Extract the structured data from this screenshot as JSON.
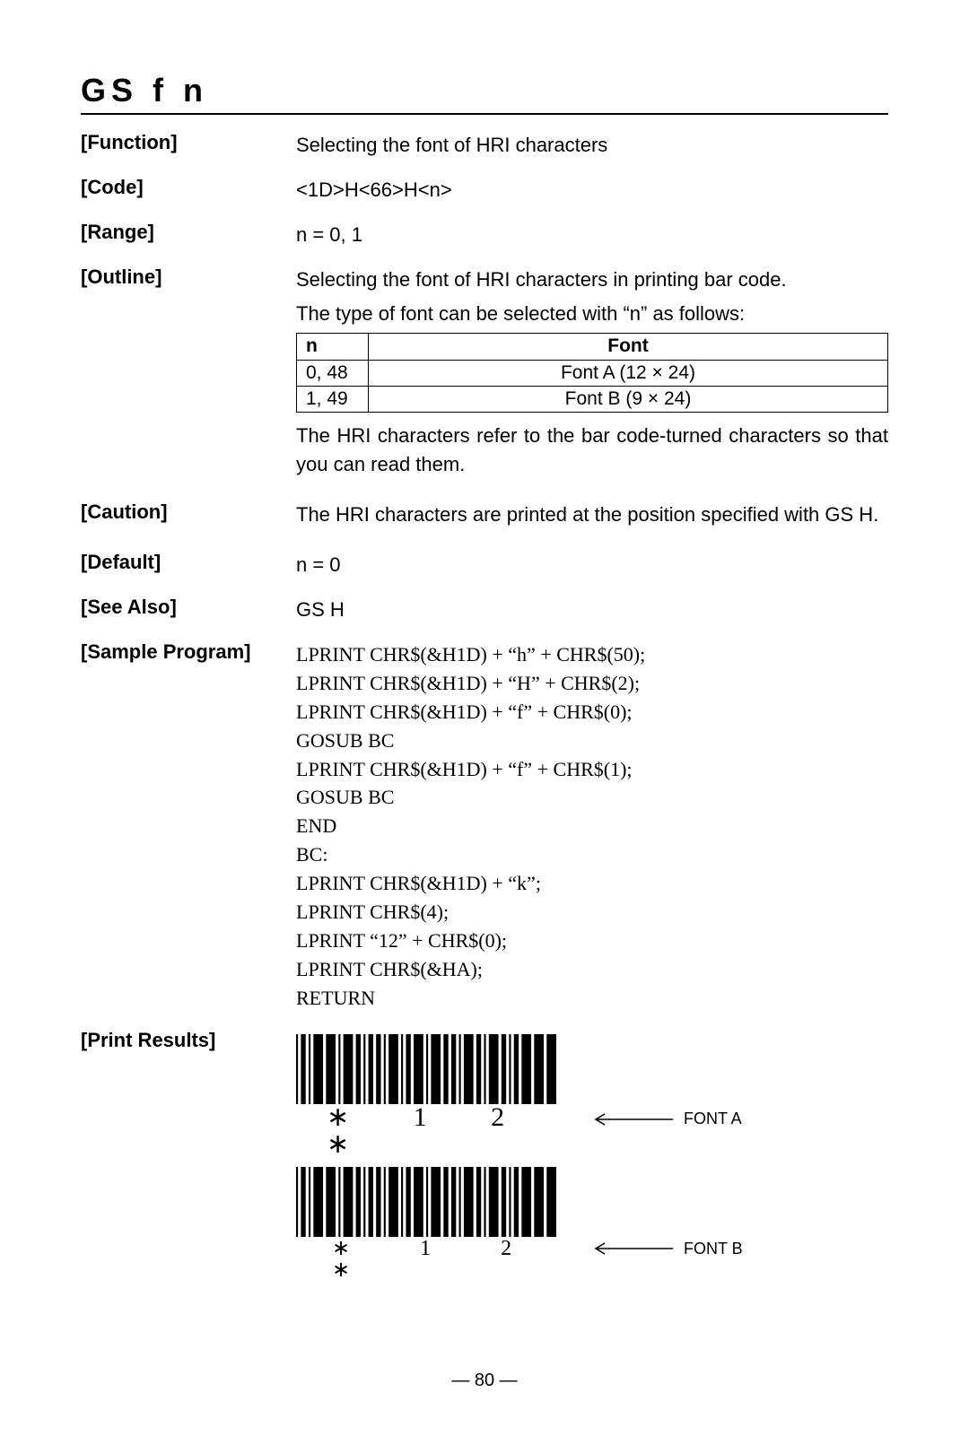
{
  "title": "GS  f   n",
  "function": {
    "label": "[Function]",
    "text": "Selecting the font of HRI characters"
  },
  "code": {
    "label": "[Code]",
    "text": "<1D>H<66>H<n>"
  },
  "range": {
    "label": "[Range]",
    "text": "n = 0, 1"
  },
  "outline": {
    "label": "[Outline]",
    "line1": "Selecting the font of HRI characters in printing bar code.",
    "line2": "The type of font can be selected with “n” as follows:",
    "table": {
      "head_n": "n",
      "head_font": "Font",
      "rows": [
        {
          "n": "0, 48",
          "font": "Font A (12 × 24)"
        },
        {
          "n": "1, 49",
          "font": "Font B (9 × 24)"
        }
      ]
    },
    "note": "The HRI characters refer to the bar code-turned characters so that you can read them."
  },
  "caution": {
    "label": "[Caution]",
    "text": "The HRI characters are printed at the position specified with GS H."
  },
  "default_": {
    "label": "[Default]",
    "text": "n = 0"
  },
  "seealso": {
    "label": "[See Also]",
    "text": "GS H"
  },
  "sample": {
    "label": "[Sample Program]",
    "lines": [
      "LPRINT CHR$(&H1D) + “h” + CHR$(50);",
      "LPRINT CHR$(&H1D) + “H” + CHR$(2);",
      "LPRINT CHR$(&H1D) + “f” + CHR$(0);",
      "GOSUB BC",
      "LPRINT CHR$(&H1D) + “f” + CHR$(1);",
      "GOSUB BC",
      "END",
      "BC:",
      "LPRINT CHR$(&H1D) + “k”;",
      "LPRINT CHR$(4);",
      "LPRINT “12” + CHR$(0);",
      "LPRINT CHR$(&HA);",
      "RETURN"
    ]
  },
  "print": {
    "label": "[Print Results]",
    "chars": "∗  1  2  ∗",
    "lblA": "FONT A",
    "lblB": "FONT B",
    "barcode": {
      "widths": [
        2,
        5,
        2,
        10,
        10,
        2,
        10,
        5,
        2,
        5,
        5,
        2,
        10,
        2,
        5,
        10,
        2,
        10,
        5,
        5,
        2,
        10,
        5,
        2,
        10,
        5,
        2,
        5,
        10,
        10,
        10
      ],
      "height": 70,
      "gap": 3,
      "color": "#000000"
    }
  },
  "page_number": "— 80 —"
}
